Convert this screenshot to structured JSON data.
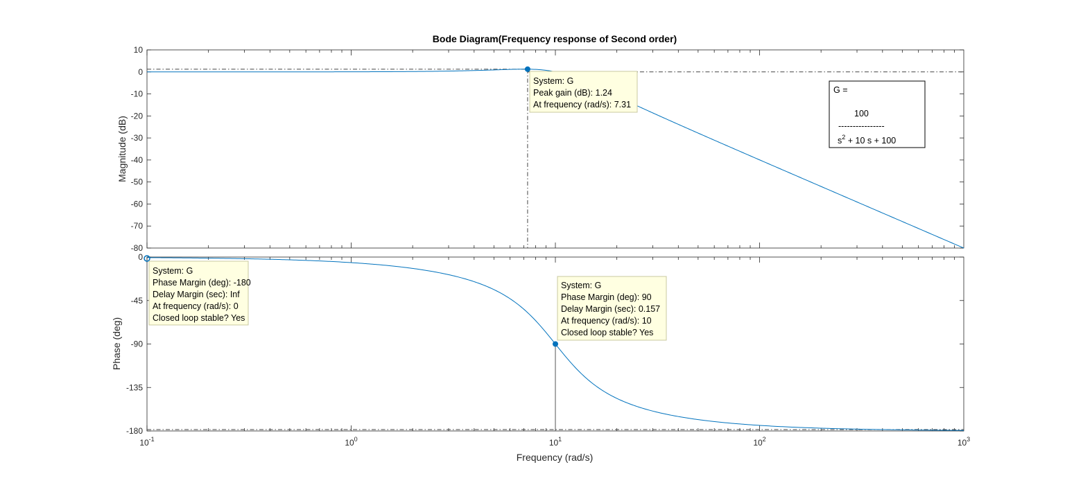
{
  "chart_data": {
    "type": "line",
    "title": "Bode Diagram(Frequency response of Second order)",
    "xlabel": "Frequency  (rad/s)",
    "x_scale": "log",
    "xlim": [
      0.1,
      1000
    ],
    "x_ticks": [
      {
        "value": 0.1,
        "base": "10",
        "exp": "-1"
      },
      {
        "value": 1,
        "base": "10",
        "exp": "0"
      },
      {
        "value": 10,
        "base": "10",
        "exp": "1"
      },
      {
        "value": 100,
        "base": "10",
        "exp": "2"
      },
      {
        "value": 1000,
        "base": "10",
        "exp": "3"
      }
    ],
    "line_color": "#0072BD",
    "system": {
      "name": "G",
      "numerator": 100,
      "denominator": [
        1,
        10,
        100
      ]
    },
    "magnitude": {
      "ylabel": "Magnitude (dB)",
      "ylim": [
        -80,
        10
      ],
      "yticks": [
        10,
        0,
        -10,
        -20,
        -30,
        -40,
        -50,
        -60,
        -70,
        -80
      ],
      "series": [
        {
          "name": "G",
          "x": [
            0.1,
            1,
            3,
            5,
            7.31,
            10,
            20,
            50,
            100,
            1000
          ],
          "y": [
            0.0,
            0.0,
            0.3,
            0.97,
            1.24,
            0.0,
            -12.3,
            -28.1,
            -40.0,
            -80.0
          ]
        }
      ],
      "reference_lines": {
        "peak_db": 1.24,
        "zero_db": 0,
        "peak_freq": 7.31
      },
      "marker": {
        "x": 7.31,
        "y": 1.24
      },
      "datatip": [
        "System: G",
        "Peak gain (dB): 1.24",
        "At frequency (rad/s): 7.31"
      ]
    },
    "phase": {
      "ylabel": "Phase (deg)",
      "ylim": [
        -180,
        0
      ],
      "yticks": [
        0,
        -45,
        -90,
        -135,
        -180
      ],
      "series": [
        {
          "name": "G",
          "x": [
            0.1,
            1,
            3,
            5,
            10,
            20,
            50,
            100,
            1000
          ],
          "y": [
            -0.57,
            -5.8,
            -18.3,
            -33.7,
            -90,
            -146.3,
            -168.2,
            -174.2,
            -179.4
          ]
        }
      ],
      "reference_lines": {
        "minus180": -180,
        "crossover_freq": 10
      },
      "markers": [
        {
          "x": 0.1,
          "y": 0,
          "hollow": true
        },
        {
          "x": 10,
          "y": -90,
          "hollow": false
        }
      ],
      "datatips": [
        [
          "System: G",
          "Phase Margin (deg): -180",
          "Delay Margin (sec): Inf",
          "At frequency (rad/s): 0",
          "Closed loop stable? Yes"
        ],
        [
          "System: G",
          "Phase Margin (deg): 90",
          "Delay Margin (sec): 0.157",
          "At frequency (rad/s): 10",
          "Closed loop stable? Yes"
        ]
      ]
    },
    "grid": false,
    "annotation": {
      "lhs": "G =",
      "numerator": "100",
      "fraction_bar": "----------------",
      "denominator_lead": "s",
      "denominator_exp": "2",
      "denominator_rest": " + 10 s + 100",
      "placement": "top-right of magnitude plot"
    }
  }
}
